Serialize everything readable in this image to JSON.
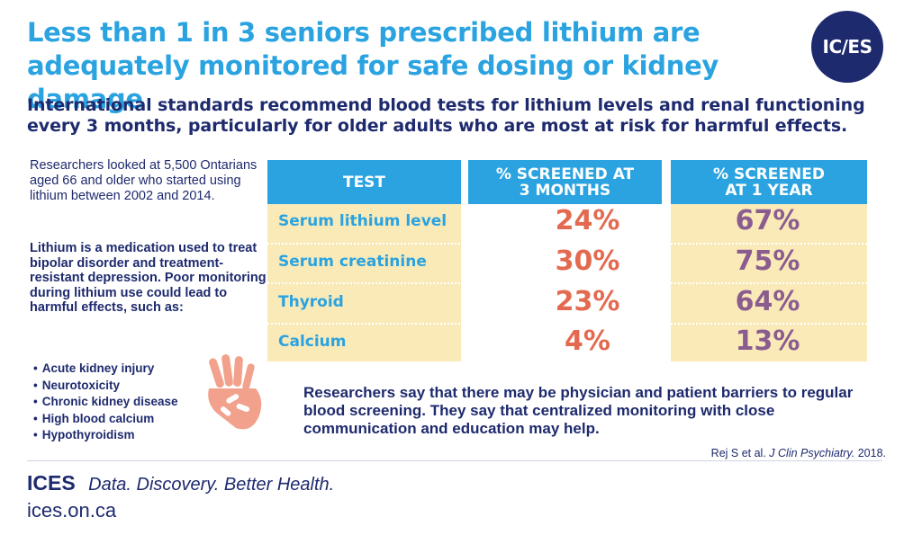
{
  "title": "Less than 1 in 3 seniors prescribed lithium are adequately monitored for safe dosing or kidney damage",
  "logo": "IC/ES",
  "subtitle": "International standards recommend blood tests for lithium levels and renal functioning every 3 months, particularly for older adults who are most at risk for harmful effects.",
  "intro": "Researchers looked at 5,500 Ontarians aged 66 and older who started using lithium between 2002 and 2014.",
  "description": "Lithium is a medication used to treat bipolar disorder and treatment-resistant depression. Poor monitoring during lithium use could lead to harmful effects, such as:",
  "effects": [
    "Acute kidney injury",
    "Neurotoxicity",
    "Chronic kidney disease",
    "High blood calcium",
    "Hypothyroidism"
  ],
  "table": {
    "headers": [
      "TEST",
      "% SCREENED AT 3 MONTHS",
      "% SCREENED AT 1 YEAR"
    ],
    "rows": [
      {
        "test": "Serum lithium level",
        "m3": "24%",
        "y1": "67%"
      },
      {
        "test": "Serum creatinine",
        "m3": "30%",
        "y1": "75%"
      },
      {
        "test": "Thyroid",
        "m3": "23%",
        "y1": "64%"
      },
      {
        "test": "Calcium",
        "m3": "4%",
        "y1": "13%"
      }
    ]
  },
  "barriers": "Researchers say that there may be physician and patient barriers to regular blood screening. They say that centralized monitoring with close communication and education may help.",
  "citation": {
    "authors": "Rej S et al.",
    "journal": "J Clin Psychiatry.",
    "year": "2018."
  },
  "footer": {
    "brand": "ICES",
    "tagline": "Data. Discovery. Better Health.",
    "url": "ices.on.ca"
  },
  "colors": {
    "blue": "#2aa3e0",
    "navy": "#1e2a6e",
    "cream": "#faeab8",
    "coral": "#e36a4f",
    "purple": "#8a5c8f"
  }
}
